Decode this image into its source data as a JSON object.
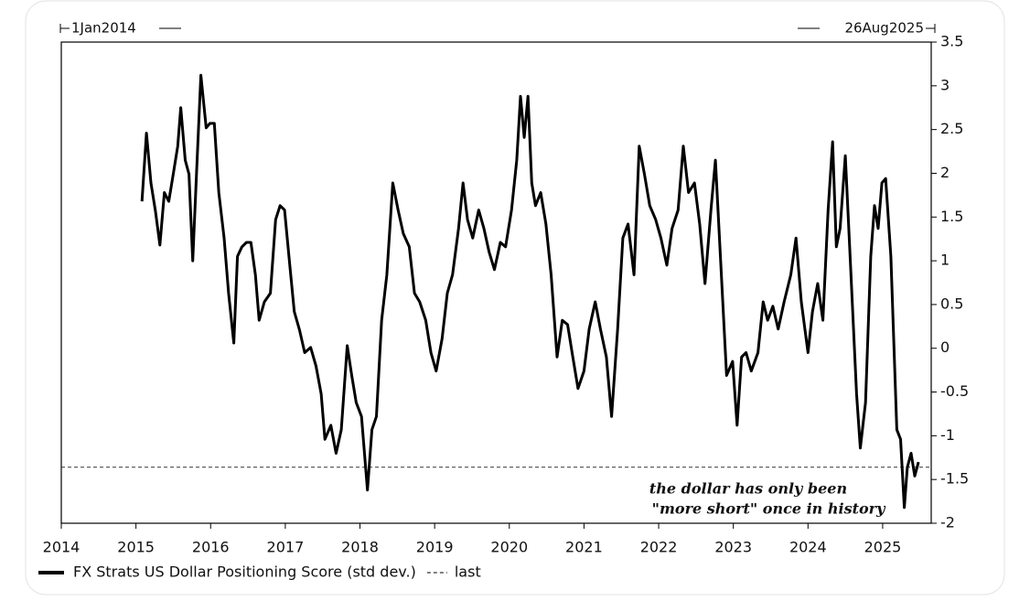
{
  "chart_data": {
    "type": "line",
    "start_label": "1Jan2014",
    "end_label": "26Aug2025",
    "x": [
      2015.08,
      2015.14,
      2015.2,
      2015.26,
      2015.32,
      2015.38,
      2015.44,
      2015.5,
      2015.56,
      2015.6,
      2015.66,
      2015.71,
      2015.76,
      2015.81,
      2015.87,
      2015.94,
      2015.99,
      2016.05,
      2016.11,
      2016.18,
      2016.24,
      2016.31,
      2016.36,
      2016.42,
      2016.48,
      2016.54,
      2016.6,
      2016.65,
      2016.72,
      2016.8,
      2016.87,
      2016.93,
      2016.99,
      2017.06,
      2017.12,
      2017.19,
      2017.26,
      2017.34,
      2017.41,
      2017.48,
      2017.53,
      2017.61,
      2017.68,
      2017.75,
      2017.83,
      2017.89,
      2017.95,
      2018.02,
      2018.1,
      2018.16,
      2018.22,
      2018.29,
      2018.36,
      2018.44,
      2018.51,
      2018.58,
      2018.66,
      2018.73,
      2018.8,
      2018.88,
      2018.95,
      2019.02,
      2019.1,
      2019.17,
      2019.24,
      2019.32,
      2019.38,
      2019.44,
      2019.51,
      2019.59,
      2019.66,
      2019.73,
      2019.8,
      2019.88,
      2019.95,
      2020.03,
      2020.1,
      2020.15,
      2020.2,
      2020.25,
      2020.3,
      2020.35,
      2020.42,
      2020.49,
      2020.56,
      2020.64,
      2020.71,
      2020.78,
      2020.85,
      2020.92,
      2021.0,
      2021.07,
      2021.15,
      2021.22,
      2021.3,
      2021.37,
      2021.45,
      2021.52,
      2021.59,
      2021.67,
      2021.74,
      2021.81,
      2021.88,
      2021.96,
      2022.03,
      2022.11,
      2022.18,
      2022.26,
      2022.33,
      2022.4,
      2022.48,
      2022.55,
      2022.62,
      2022.7,
      2022.76,
      2022.84,
      2022.91,
      2022.99,
      2023.05,
      2023.11,
      2023.17,
      2023.24,
      2023.33,
      2023.4,
      2023.46,
      2023.53,
      2023.6,
      2023.68,
      2023.77,
      2023.84,
      2023.91,
      2024.0,
      2024.06,
      2024.13,
      2024.2,
      2024.27,
      2024.33,
      2024.38,
      2024.43,
      2024.5,
      2024.57,
      2024.65,
      2024.7,
      2024.77,
      2024.84,
      2024.89,
      2024.94,
      2024.99,
      2025.04,
      2025.11,
      2025.19,
      2025.24,
      2025.29,
      2025.33,
      2025.38,
      2025.43,
      2025.48
    ],
    "series": [
      {
        "name": "FX Strats US Dollar Positioning Score (std dev.)",
        "color": "#000000",
        "values": [
          1.68,
          2.46,
          1.89,
          1.57,
          1.18,
          1.78,
          1.68,
          1.99,
          2.31,
          2.75,
          2.15,
          1.99,
          1.0,
          1.99,
          3.12,
          2.52,
          2.57,
          2.57,
          1.78,
          1.26,
          0.63,
          0.06,
          1.05,
          1.16,
          1.21,
          1.21,
          0.84,
          0.32,
          0.53,
          0.63,
          1.47,
          1.63,
          1.58,
          0.95,
          0.42,
          0.21,
          -0.05,
          0.01,
          -0.2,
          -0.52,
          -1.04,
          -0.88,
          -1.2,
          -0.93,
          0.03,
          -0.31,
          -0.62,
          -0.78,
          -1.62,
          -0.93,
          -0.78,
          0.32,
          0.84,
          1.89,
          1.58,
          1.31,
          1.16,
          0.63,
          0.53,
          0.32,
          -0.05,
          -0.26,
          0.11,
          0.63,
          0.84,
          1.37,
          1.89,
          1.47,
          1.26,
          1.58,
          1.37,
          1.1,
          0.9,
          1.21,
          1.16,
          1.58,
          2.15,
          2.88,
          2.41,
          2.88,
          1.89,
          1.63,
          1.78,
          1.42,
          0.84,
          -0.1,
          0.32,
          0.27,
          -0.1,
          -0.46,
          -0.26,
          0.22,
          0.53,
          0.22,
          -0.1,
          -0.78,
          0.22,
          1.26,
          1.42,
          0.84,
          2.31,
          1.99,
          1.63,
          1.47,
          1.26,
          0.95,
          1.37,
          1.58,
          2.31,
          1.78,
          1.89,
          1.42,
          0.74,
          1.58,
          2.15,
          0.84,
          -0.31,
          -0.15,
          -0.88,
          -0.1,
          -0.05,
          -0.26,
          -0.05,
          0.53,
          0.32,
          0.48,
          0.22,
          0.53,
          0.84,
          1.26,
          0.53,
          -0.05,
          0.42,
          0.74,
          0.32,
          1.58,
          2.36,
          1.16,
          1.37,
          2.2,
          0.95,
          -0.52,
          -1.14,
          -0.62,
          1.05,
          1.63,
          1.37,
          1.89,
          1.94,
          1.05,
          -0.93,
          -1.04,
          -1.82,
          -1.36,
          -1.2,
          -1.46,
          -1.3
        ]
      }
    ],
    "reference_line": {
      "name": "last",
      "value": -1.36
    },
    "annotations": [
      "the dollar has only been",
      "\"more short\"  once in history"
    ],
    "xlim": [
      2014,
      2025.65
    ],
    "xticks": [
      2014,
      2015,
      2016,
      2017,
      2018,
      2019,
      2020,
      2021,
      2022,
      2023,
      2024,
      2025
    ],
    "ylim": [
      -2,
      3.5
    ],
    "yticks": [
      -2,
      -1.5,
      -1,
      -0.5,
      0,
      0.5,
      1,
      1.5,
      2,
      2.5,
      3,
      3.5
    ],
    "y_axis_side": "right"
  }
}
